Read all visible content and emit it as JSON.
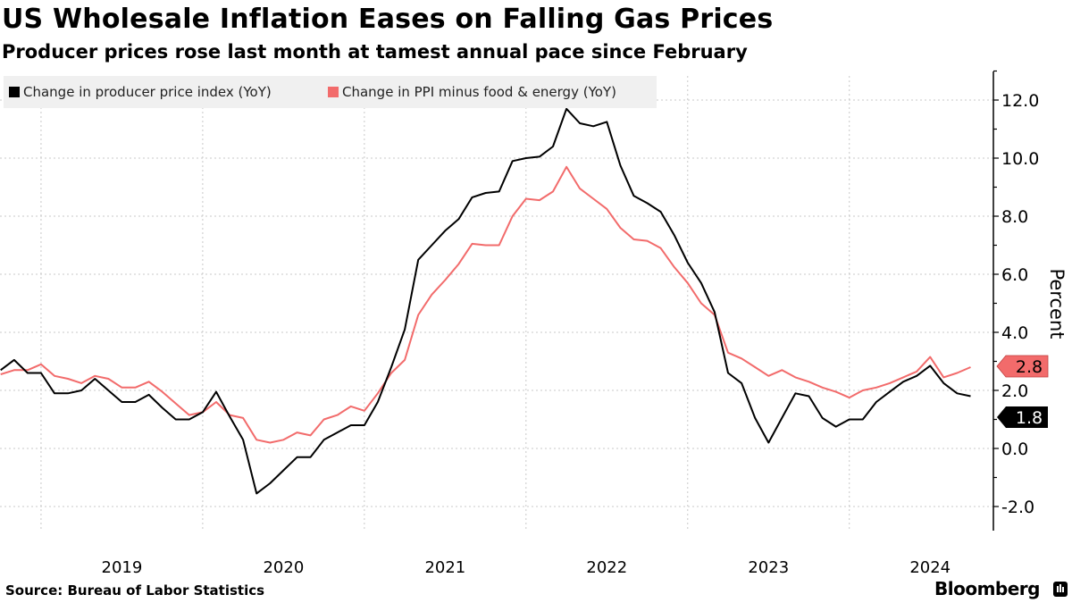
{
  "title": "US Wholesale Inflation Eases on Falling Gas Prices",
  "subtitle": "Producer prices rose last month at tamest annual pace since February",
  "source": "Source: Bureau of Labor Statistics",
  "brand": "Bloomberg",
  "colors": {
    "ppi": "#000000",
    "core": "#f26b6b",
    "grid": "#c8c8c8",
    "legend_bg": "#f0f0f0"
  },
  "chart_data": {
    "type": "line",
    "title": "US Wholesale Inflation Eases on Falling Gas Prices",
    "ylabel": "Percent",
    "ylim": [
      -2.8,
      13
    ],
    "yticks": [
      "-2.0",
      "0.0",
      "2.0",
      "4.0",
      "6.0",
      "8.0",
      "10.0",
      "12.0"
    ],
    "ytick_values": [
      -2,
      0,
      2,
      4,
      6,
      8,
      10,
      12
    ],
    "xticks": [
      "2019",
      "2020",
      "2021",
      "2022",
      "2023",
      "2024"
    ],
    "x_start": "2018-09",
    "x_end": "2024-09",
    "x_frequency": "monthly",
    "grid": true,
    "legend_position": "top-left",
    "y_axis_side": "right",
    "series": [
      {
        "name": "Change in producer price index (YoY)",
        "color": "#000000",
        "last_label": "1.8",
        "values": [
          2.7,
          3.05,
          2.6,
          2.6,
          1.9,
          1.9,
          2.0,
          2.4,
          2.0,
          1.6,
          1.6,
          1.85,
          1.4,
          1.0,
          1.0,
          1.25,
          1.95,
          1.1,
          0.3,
          -1.55,
          -1.2,
          -0.75,
          -0.3,
          -0.3,
          0.3,
          0.55,
          0.8,
          0.8,
          1.6,
          2.8,
          4.1,
          6.5,
          7.0,
          7.5,
          7.9,
          8.65,
          8.8,
          8.85,
          9.9,
          10.0,
          10.05,
          10.4,
          11.7,
          11.2,
          11.1,
          11.25,
          9.75,
          8.7,
          8.45,
          8.15,
          7.35,
          6.4,
          5.7,
          4.7,
          2.6,
          2.25,
          1.05,
          0.2,
          1.05,
          1.9,
          1.8,
          1.05,
          0.75,
          1.0,
          1.0,
          1.6,
          1.95,
          2.3,
          2.5,
          2.85,
          2.25,
          1.9,
          1.8
        ]
      },
      {
        "name": "Change in PPI minus food & energy (YoY)",
        "color": "#f26b6b",
        "last_label": "2.8",
        "values": [
          2.55,
          2.7,
          2.7,
          2.9,
          2.5,
          2.4,
          2.25,
          2.5,
          2.4,
          2.1,
          2.1,
          2.3,
          1.95,
          1.55,
          1.15,
          1.25,
          1.6,
          1.15,
          1.05,
          0.3,
          0.2,
          0.3,
          0.55,
          0.45,
          1.0,
          1.15,
          1.45,
          1.3,
          1.9,
          2.6,
          3.05,
          4.6,
          5.3,
          5.8,
          6.35,
          7.05,
          7.0,
          7.0,
          8.0,
          8.6,
          8.55,
          8.85,
          9.7,
          8.95,
          8.6,
          8.25,
          7.6,
          7.2,
          7.15,
          6.9,
          6.25,
          5.7,
          5.0,
          4.6,
          3.3,
          3.1,
          2.8,
          2.5,
          2.7,
          2.45,
          2.3,
          2.1,
          1.95,
          1.75,
          2.0,
          2.1,
          2.25,
          2.45,
          2.65,
          3.15,
          2.45,
          2.6,
          2.8
        ]
      }
    ]
  }
}
